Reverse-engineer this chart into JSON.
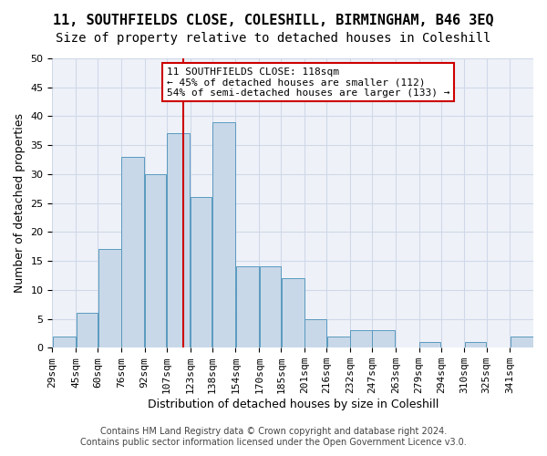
{
  "title": "11, SOUTHFIELDS CLOSE, COLESHILL, BIRMINGHAM, B46 3EQ",
  "subtitle": "Size of property relative to detached houses in Coleshill",
  "xlabel": "Distribution of detached houses by size in Coleshill",
  "ylabel": "Number of detached properties",
  "bar_values": [
    2,
    6,
    17,
    33,
    30,
    37,
    26,
    39,
    14,
    14,
    12,
    5,
    2,
    3,
    3,
    0,
    1,
    0,
    1,
    0,
    2
  ],
  "bar_labels": [
    "29sqm",
    "45sqm",
    "60sqm",
    "76sqm",
    "92sqm",
    "107sqm",
    "123sqm",
    "138sqm",
    "154sqm",
    "170sqm",
    "185sqm",
    "201sqm",
    "216sqm",
    "232sqm",
    "247sqm",
    "263sqm",
    "279sqm",
    "294sqm",
    "310sqm",
    "325sqm",
    "341sqm"
  ],
  "bar_color": "#c8d8e8",
  "bar_edge_color": "#5a9abf",
  "vline_x": 118,
  "bin_edges": [
    29,
    45,
    60,
    76,
    92,
    107,
    123,
    138,
    154,
    170,
    185,
    201,
    216,
    232,
    247,
    263,
    279,
    294,
    310,
    325,
    341,
    357
  ],
  "ylim": [
    0,
    50
  ],
  "yticks": [
    0,
    5,
    10,
    15,
    20,
    25,
    30,
    35,
    40,
    45,
    50
  ],
  "annotation_text": "11 SOUTHFIELDS CLOSE: 118sqm\n← 45% of detached houses are smaller (112)\n54% of semi-detached houses are larger (133) →",
  "annotation_box_color": "#ffffff",
  "annotation_box_edge_color": "#cc0000",
  "vline_color": "#cc0000",
  "grid_color": "#d0d8e8",
  "background_color": "#eef2f8",
  "footer_text": "Contains HM Land Registry data © Crown copyright and database right 2024.\nContains public sector information licensed under the Open Government Licence v3.0.",
  "title_fontsize": 11,
  "subtitle_fontsize": 10,
  "xlabel_fontsize": 9,
  "ylabel_fontsize": 9,
  "tick_fontsize": 8,
  "annotation_fontsize": 8,
  "footer_fontsize": 7
}
